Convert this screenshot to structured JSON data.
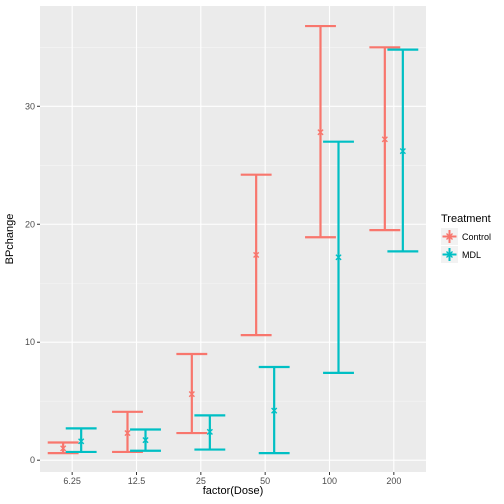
{
  "chart_data": {
    "type": "errorbar",
    "x": {
      "label": "factor(Dose)",
      "categories": [
        "6.25",
        "12.5",
        "25",
        "50",
        "100",
        "200"
      ]
    },
    "y": {
      "label": "BPchange",
      "ylim": [
        -1.0,
        38.5
      ],
      "ticks": [
        0,
        10,
        20,
        30
      ],
      "tick_labels": [
        "0",
        "10",
        "20",
        "30"
      ]
    },
    "grid": true,
    "legend": {
      "title": "Treatment",
      "placement": "right"
    },
    "series": [
      {
        "name": "Control",
        "color": "#F8766D",
        "points": [
          {
            "x": "6.25",
            "mean": 1.0,
            "low": 0.6,
            "high": 1.5
          },
          {
            "x": "12.5",
            "mean": 2.3,
            "low": 0.7,
            "high": 4.1
          },
          {
            "x": "25",
            "mean": 5.6,
            "low": 2.3,
            "high": 9.0
          },
          {
            "x": "50",
            "mean": 17.4,
            "low": 10.6,
            "high": 24.2
          },
          {
            "x": "100",
            "mean": 27.8,
            "low": 18.9,
            "high": 36.8
          },
          {
            "x": "200",
            "mean": 27.2,
            "low": 19.5,
            "high": 35.0
          }
        ]
      },
      {
        "name": "MDL",
        "color": "#00BFC4",
        "points": [
          {
            "x": "6.25",
            "mean": 1.6,
            "low": 0.7,
            "high": 2.7
          },
          {
            "x": "12.5",
            "mean": 1.7,
            "low": 0.8,
            "high": 2.6
          },
          {
            "x": "25",
            "mean": 2.4,
            "low": 0.9,
            "high": 3.8
          },
          {
            "x": "50",
            "mean": 4.2,
            "low": 0.6,
            "high": 7.9
          },
          {
            "x": "100",
            "mean": 17.2,
            "low": 7.4,
            "high": 27.0
          },
          {
            "x": "200",
            "mean": 26.2,
            "low": 17.7,
            "high": 34.8
          }
        ]
      }
    ]
  }
}
